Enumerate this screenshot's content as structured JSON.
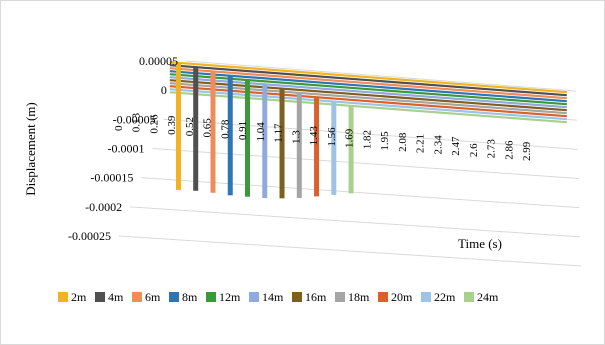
{
  "chart_data": {
    "type": "line",
    "title": "",
    "xlabel": "Time (s)",
    "ylabel": "Displacement (m)",
    "y_ticks": [
      "0.00005",
      "0",
      "-0.00005",
      "-0.0001",
      "-0.00015",
      "-0.0002",
      "-0.00025"
    ],
    "ylim": [
      -0.00025,
      5e-05
    ],
    "x_ticks": [
      "0",
      "0.13",
      "0.26",
      "0.39",
      "0.52",
      "0.65",
      "0.78",
      "0.91",
      "1.04",
      "1.17",
      "1.3",
      "1.43",
      "1.56",
      "1.69",
      "1.82",
      "1.95",
      "2.08",
      "2.21",
      "2.34",
      "2.47",
      "2.6",
      "2.73",
      "2.86",
      "2.99"
    ],
    "grid": true,
    "legend_position": "bottom",
    "series": [
      {
        "name": "2m",
        "color": "#f0b323",
        "spike_time": 0.065,
        "spike_min": -0.000218
      },
      {
        "name": "4m",
        "color": "#505050",
        "spike_time": 0.195,
        "spike_min": -0.000212
      },
      {
        "name": "6m",
        "color": "#f08c5a",
        "spike_time": 0.325,
        "spike_min": -0.000208
      },
      {
        "name": "8m",
        "color": "#2e75b6",
        "spike_time": 0.455,
        "spike_min": -0.000205
      },
      {
        "name": "12m",
        "color": "#3a9a3a",
        "spike_time": 0.585,
        "spike_min": -0.0002
      },
      {
        "name": "14m",
        "color": "#8faadc",
        "spike_time": 0.715,
        "spike_min": -0.000195
      },
      {
        "name": "16m",
        "color": "#7f5f1f",
        "spike_time": 0.845,
        "spike_min": -0.000188
      },
      {
        "name": "18m",
        "color": "#a5a5a5",
        "spike_time": 0.975,
        "spike_min": -0.00018
      },
      {
        "name": "20m",
        "color": "#d9622b",
        "spike_time": 1.105,
        "spike_min": -0.00017
      },
      {
        "name": "22m",
        "color": "#9dc3e6",
        "spike_time": 1.235,
        "spike_min": -0.00016
      },
      {
        "name": "24m",
        "color": "#a9d18e",
        "spike_time": 1.365,
        "spike_min": -0.00015
      }
    ]
  }
}
